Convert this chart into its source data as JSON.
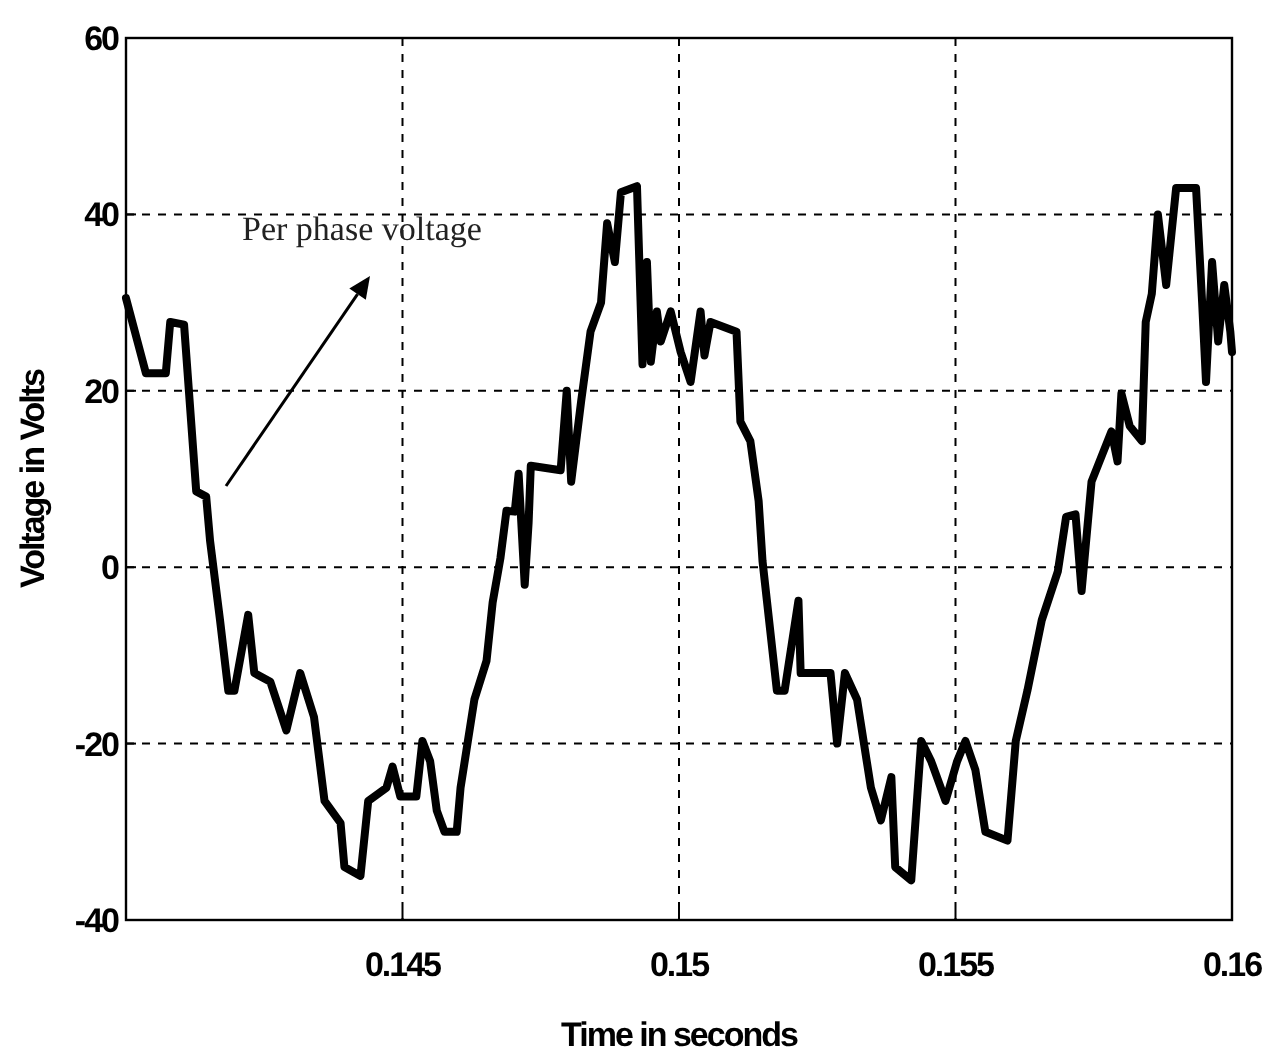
{
  "chart_data": {
    "type": "line",
    "xlabel": "Time in seconds",
    "ylabel": "Voltage in Volts",
    "xlim": [
      0.14,
      0.16
    ],
    "xticks": [
      0.145,
      0.15,
      0.155,
      0.16
    ],
    "ylim": [
      -40,
      60
    ],
    "yticks": [
      -40,
      -20,
      0,
      20,
      40,
      60
    ],
    "grid": true,
    "line_style": "solid",
    "marker": "none",
    "annotations": [
      "Per phase voltage"
    ],
    "series": [
      {
        "color": "#000000",
        "x": [
          0.14,
          0.14036,
          0.14072,
          0.1408,
          0.14105,
          0.14127,
          0.14145,
          0.14152,
          0.1417,
          0.14185,
          0.14196,
          0.14221,
          0.14232,
          0.14261,
          0.1429,
          0.14315,
          0.1434,
          0.14359,
          0.14388,
          0.14395,
          0.14424,
          0.14438,
          0.14471,
          0.14482,
          0.14496,
          0.14525,
          0.14536,
          0.1455,
          0.14562,
          0.14576,
          0.14598,
          0.14605,
          0.1463,
          0.14652,
          0.14663,
          0.14677,
          0.14688,
          0.14703,
          0.1471,
          0.14721,
          0.14728,
          0.14732,
          0.14786,
          0.14797,
          0.14805,
          0.14823,
          0.1484,
          0.14859,
          0.1487,
          0.14884,
          0.14895,
          0.14924,
          0.14934,
          0.14942,
          0.14949,
          0.1496,
          0.14967,
          0.14985,
          0.15003,
          0.15021,
          0.15039,
          0.15046,
          0.15057,
          0.15104,
          0.15111,
          0.15129,
          0.15144,
          0.15151,
          0.15177,
          0.15191,
          0.15216,
          0.1522,
          0.15274,
          0.15286,
          0.153,
          0.15322,
          0.15347,
          0.15365,
          0.15384,
          0.15391,
          0.1542,
          0.15438,
          0.15456,
          0.15482,
          0.15503,
          0.15518,
          0.15536,
          0.15554,
          0.15594,
          0.15609,
          0.1563,
          0.15656,
          0.15685,
          0.157,
          0.15717,
          0.15728,
          0.15746,
          0.15782,
          0.15793,
          0.158,
          0.15815,
          0.15837,
          0.15844,
          0.15855,
          0.15866,
          0.15881,
          0.15899,
          0.15935,
          0.15946,
          0.15953,
          0.15964,
          0.15975,
          0.15986,
          0.15997,
          0.16
        ],
        "values": [
          30.5,
          22,
          22,
          27.8,
          27.5,
          8.6,
          8,
          3,
          -6,
          -14,
          -14,
          -5.4,
          -12,
          -13,
          -18.5,
          -12,
          -17,
          -26.5,
          -29,
          -34,
          -35,
          -26.5,
          -25,
          -22.6,
          -26,
          -26,
          -19.7,
          -22,
          -27.6,
          -30,
          -30,
          -25,
          -15,
          -10.6,
          -4,
          1,
          6.4,
          6.3,
          10.6,
          -2,
          5,
          11.5,
          11,
          20,
          9.7,
          18.8,
          26.7,
          30,
          39,
          34.6,
          42.5,
          43.2,
          23,
          34.6,
          23.3,
          29,
          25.6,
          29,
          24.4,
          21,
          29,
          24,
          27.8,
          26.7,
          16.5,
          14.3,
          7.5,
          0.7,
          -14,
          -14,
          -3.8,
          -12,
          -12,
          -20,
          -12,
          -15,
          -25,
          -28.7,
          -23.8,
          -34,
          -35.5,
          -19.7,
          -22,
          -26.5,
          -22,
          -19.7,
          -23,
          -30,
          -31,
          -19.7,
          -14,
          -6,
          -0.5,
          5.7,
          6,
          -2.7,
          9.7,
          15.4,
          12,
          19.7,
          16,
          14.3,
          27.8,
          31,
          40,
          32,
          43,
          43,
          30,
          21,
          34.6,
          25.6,
          32,
          26.7,
          24.4
        ]
      }
    ]
  }
}
